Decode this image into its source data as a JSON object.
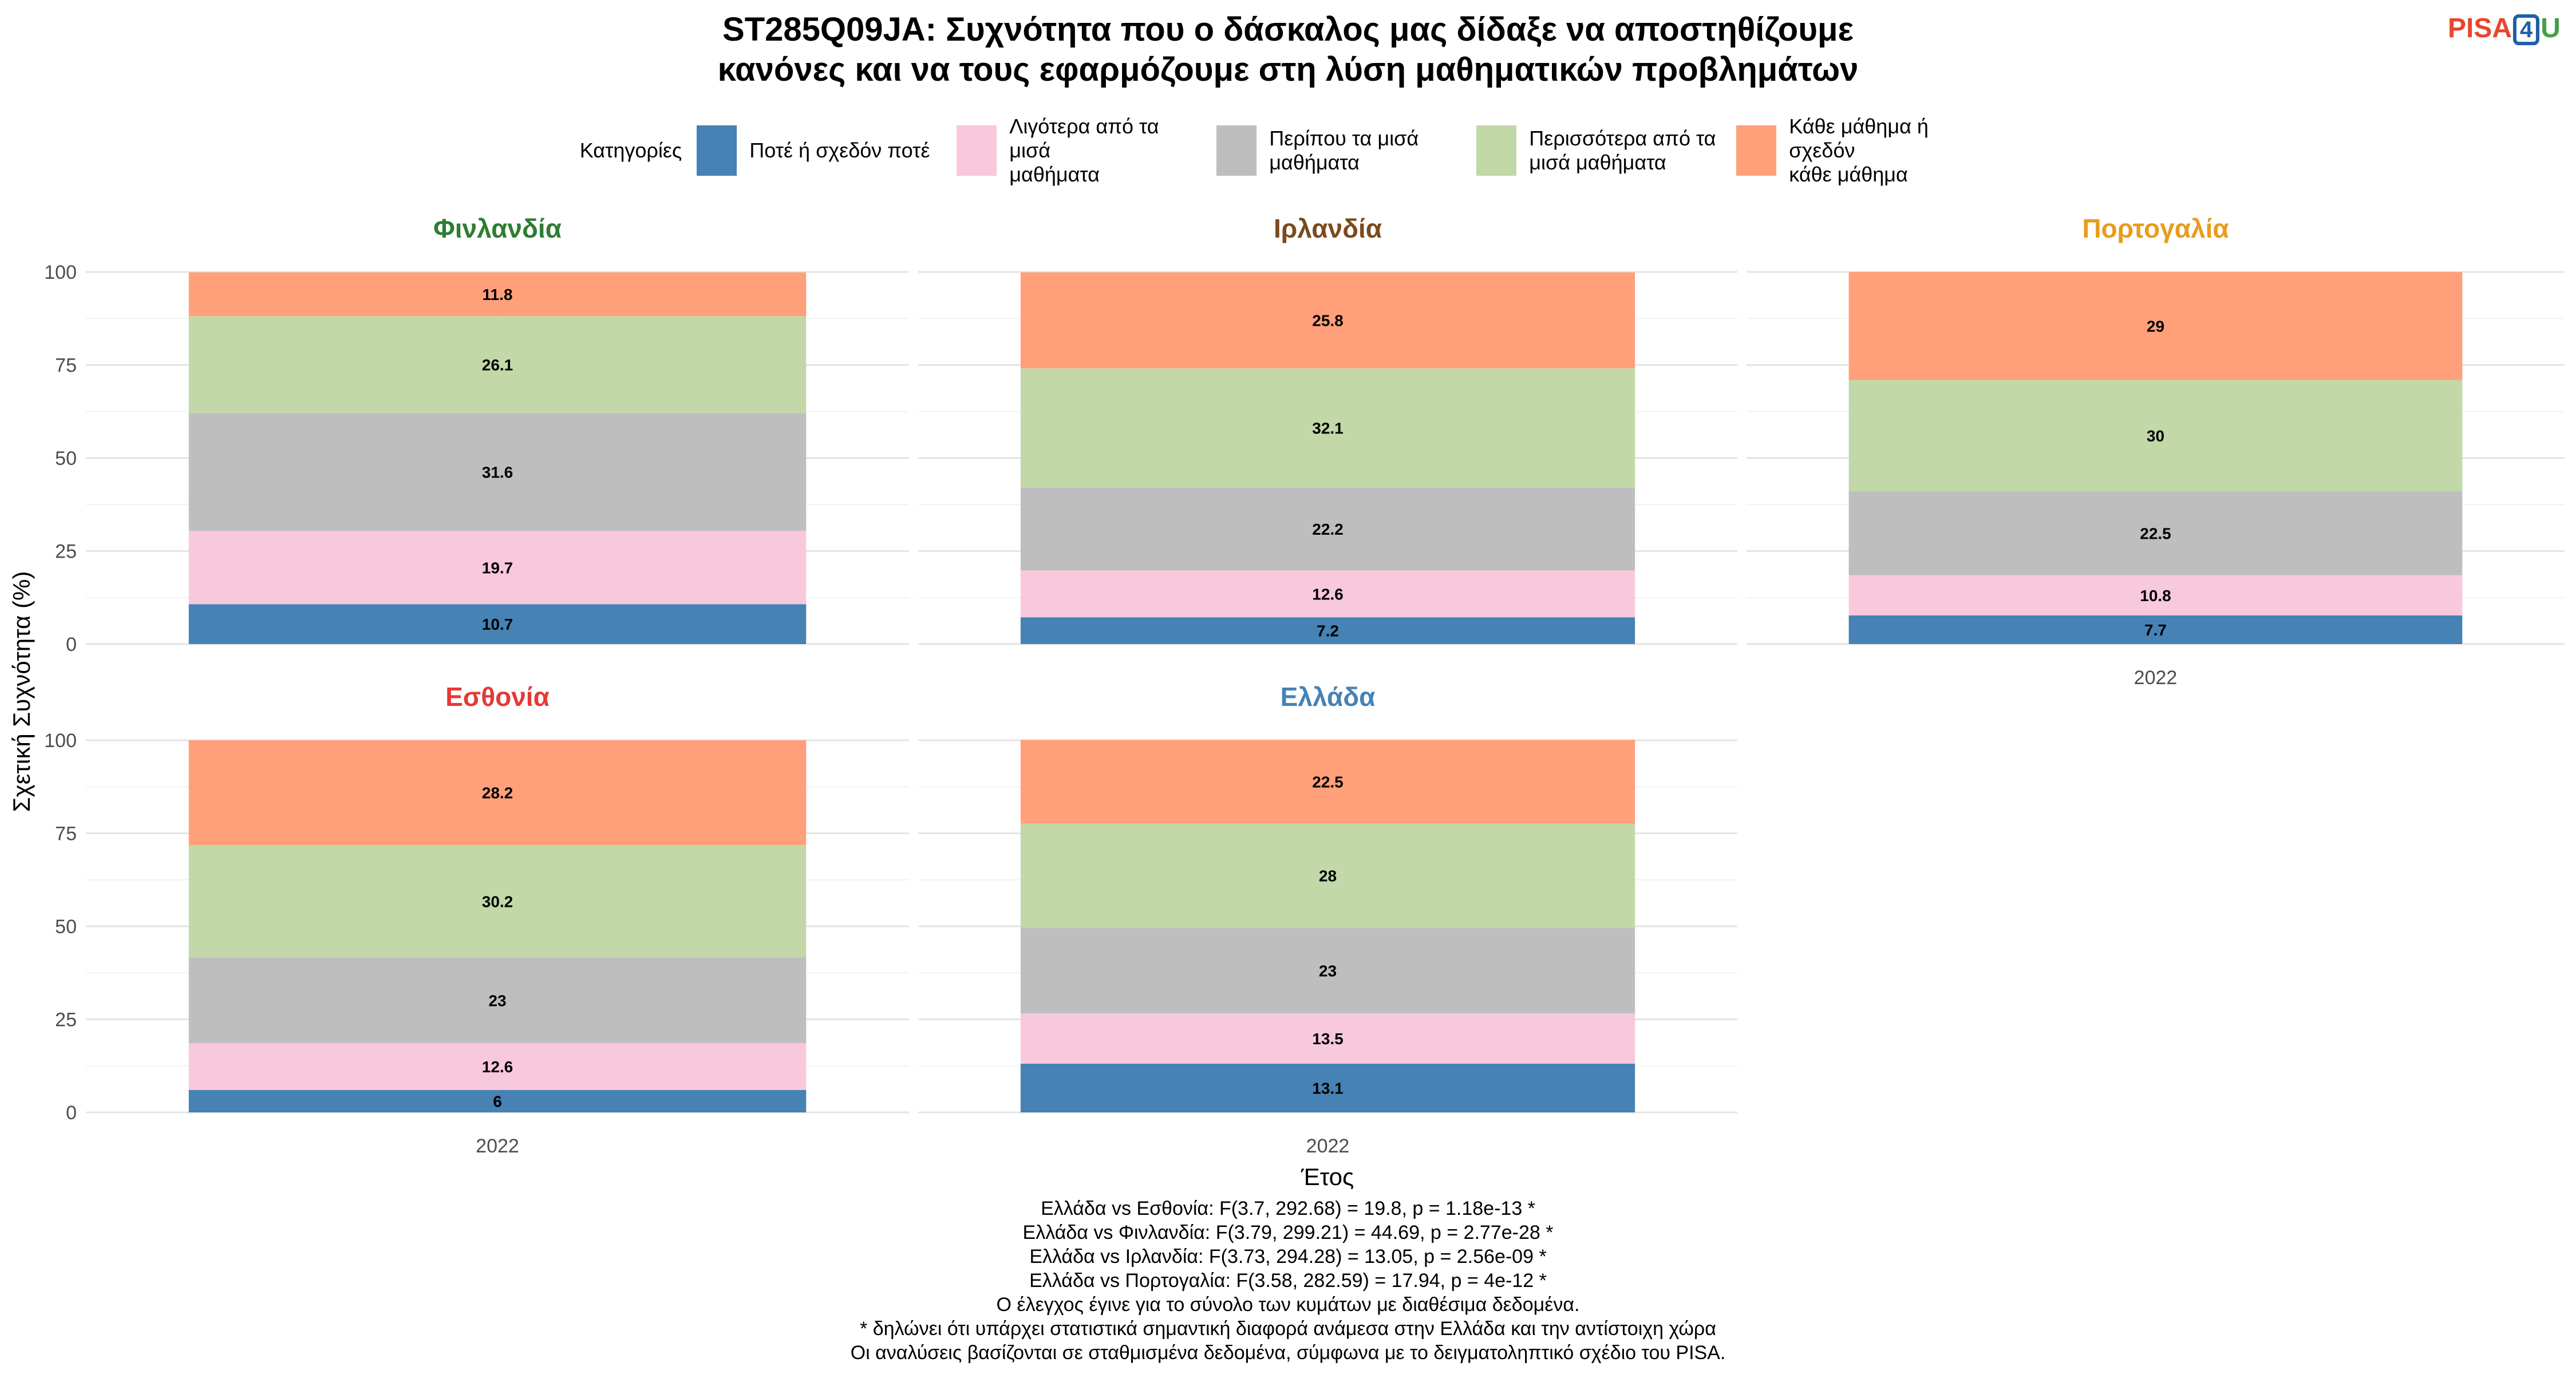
{
  "header": {
    "title_line1": "ST285Q09JA: Συχνότητα που ο δάσκαλος μας δίδαξε να αποστηθίζουμε",
    "title_line2": "κανόνες και να τους εφαρμόζουμε στη λύση μαθηματικών προβλημάτων",
    "logo": {
      "pisa": "PISA",
      "four": "4",
      "u": "U"
    }
  },
  "legend": {
    "title": "Κατηγορίες",
    "items": [
      {
        "line1": "Ποτέ ή σχεδόν ποτέ",
        "line2": "",
        "color": "#4682b4"
      },
      {
        "line1": "Λιγότερα από τα μισά",
        "line2": "μαθήματα",
        "color": "#f8c8dc"
      },
      {
        "line1": "Περίπου τα μισά",
        "line2": "μαθήματα",
        "color": "#bebebe"
      },
      {
        "line1": "Περισσότερα από τα",
        "line2": "μισά μαθήματα",
        "color": "#c2d8a8"
      },
      {
        "line1": "Κάθε μάθημα ή σχεδόν",
        "line2": "κάθε μάθημα",
        "color": "#ffa07a"
      }
    ]
  },
  "chart_data": {
    "type": "bar",
    "stacked": true,
    "xlabel": "Έτος",
    "ylabel": "Σχετική Συχνότητα (%)",
    "ylim": [
      0,
      100
    ],
    "yticks": [
      0,
      25,
      50,
      75,
      100
    ],
    "categories": [
      "2022"
    ],
    "series_names": [
      "Ποτέ ή σχεδόν ποτέ",
      "Λιγότερα από τα μισά μαθήματα",
      "Περίπου τα μισά μαθήματα",
      "Περισσότερα από τα μισά μαθήματα",
      "Κάθε μάθημα ή σχεδόν κάθε μάθημα"
    ],
    "series_colors": [
      "#4682b4",
      "#f8c8dc",
      "#bebebe",
      "#c2d8a8",
      "#ffa07a"
    ],
    "panels": [
      {
        "country": "Φινλανδία",
        "title_color": "#2e7d32",
        "values": [
          10.7,
          19.7,
          31.6,
          26.1,
          11.8
        ],
        "labels": [
          "10.7",
          "19.7",
          "31.6",
          "26.1",
          "11.8"
        ]
      },
      {
        "country": "Ιρλανδία",
        "title_color": "#7b4a1e",
        "values": [
          7.2,
          12.6,
          22.2,
          32.1,
          25.8
        ],
        "labels": [
          "7.2",
          "12.6",
          "22.2",
          "32.1",
          "25.8"
        ]
      },
      {
        "country": "Πορτογαλία",
        "title_color": "#e89c1a",
        "values": [
          7.7,
          10.8,
          22.5,
          30,
          29
        ],
        "labels": [
          "7.7",
          "10.8",
          "22.5",
          "30",
          "29"
        ]
      },
      {
        "country": "Εσθονία",
        "title_color": "#e53935",
        "values": [
          6,
          12.6,
          23,
          30.2,
          28.2
        ],
        "labels": [
          "6",
          "12.6",
          "23",
          "30.2",
          "28.2"
        ]
      },
      {
        "country": "Ελλάδα",
        "title_color": "#4682b4",
        "values": [
          13.1,
          13.5,
          23,
          28,
          22.5
        ],
        "labels": [
          "13.1",
          "13.5",
          "23",
          "28",
          "22.5"
        ]
      }
    ],
    "grid": true,
    "legend_position": "top"
  },
  "notes": [
    "Ελλάδα vs Εσθονία: F(3.7, 292.68) = 19.8, p = 1.18e-13 *",
    "Ελλάδα vs Φινλανδία: F(3.79, 299.21) = 44.69, p = 2.77e-28 *",
    "Ελλάδα vs Ιρλανδία: F(3.73, 294.28) = 13.05, p = 2.56e-09 *",
    "Ελλάδα vs Πορτογαλία: F(3.58, 282.59) = 17.94, p = 4e-12 *",
    "Ο έλεγχος έγινε για το σύνολο των κυμάτων με διαθέσιμα δεδομένα.",
    "* δηλώνει ότι υπάρχει στατιστικά σημαντική διαφορά ανάμεσα στην Ελλάδα και την αντίστοιχη χώρα",
    "Οι αναλύσεις βασίζονται σε σταθμισμένα δεδομένα, σύμφωνα με το δειγματοληπτικό σχέδιο του PISA."
  ]
}
